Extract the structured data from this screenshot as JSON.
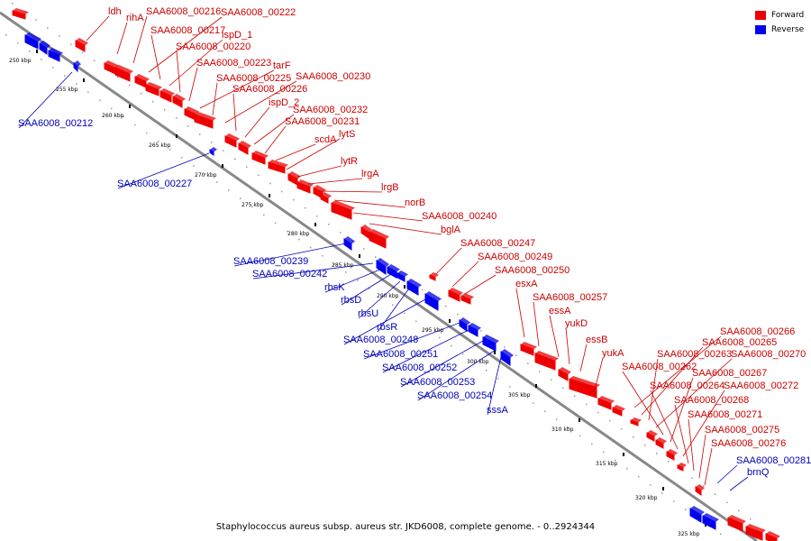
{
  "caption": "Staphylococcus aureus subsp. aureus str. JKD6008, complete genome. - 0..2924344",
  "legend": [
    {
      "label": "Forward",
      "color": "#ee0000"
    },
    {
      "label": "Reverse",
      "color": "#0000ee"
    }
  ],
  "colors": {
    "forward": "#ee0000",
    "reverse": "#0000ee",
    "backbone": "#888888",
    "labels_forward": "#cc0000",
    "labels_reverse": "#0000bb"
  },
  "ticks": [
    "250 kbp",
    "255 kbp",
    "260 kbp",
    "265 kbp",
    "270 kbp",
    "275 kbp",
    "280 kbp",
    "285 kbp",
    "290 kbp",
    "295 kbp",
    "300 kbp",
    "305 kbp",
    "310 kbp",
    "315 kbp",
    "320 kbp",
    "325 kbp"
  ],
  "forward_labels": [
    "ldh",
    "rihA",
    "SAA6008_00216",
    "SAA6008_00222",
    "SAA6008_00217",
    "ispD_1",
    "SAA6008_00220",
    "SAA6008_00223",
    "tarF",
    "SAA6008_00225",
    "SAA6008_00230",
    "SAA6008_00226",
    "ispD_2",
    "SAA6008_00232",
    "SAA6008_00231",
    "scdA",
    "lytS",
    "lytR",
    "lrgA",
    "lrgB",
    "norB",
    "SAA6008_00240",
    "bglA",
    "SAA6008_00247",
    "SAA6008_00249",
    "SAA6008_00250",
    "esxA",
    "SAA6008_00257",
    "essA",
    "yukD",
    "essB",
    "yukA",
    "SAA6008_00266",
    "SAA6008_00265",
    "SAA6008_00263",
    "SAA6008_00270",
    "SAA6008_00262",
    "SAA6008_00267",
    "SAA6008_00264",
    "SAA6008_00272",
    "SAA6008_00268",
    "SAA6008_00271",
    "SAA6008_00275",
    "SAA6008_00276"
  ],
  "reverse_labels": [
    "SAA6008_00212",
    "SAA6008_00227",
    "SAA6008_00239",
    "SAA6008_00242",
    "rbsK",
    "rbsD",
    "rbsU",
    "rbsR",
    "SAA6008_00248",
    "SAA6008_00251",
    "SAA6008_00252",
    "SAA6008_00253",
    "SAA6008_00254",
    "sssA",
    "SAA6008_00281",
    "brnQ"
  ]
}
